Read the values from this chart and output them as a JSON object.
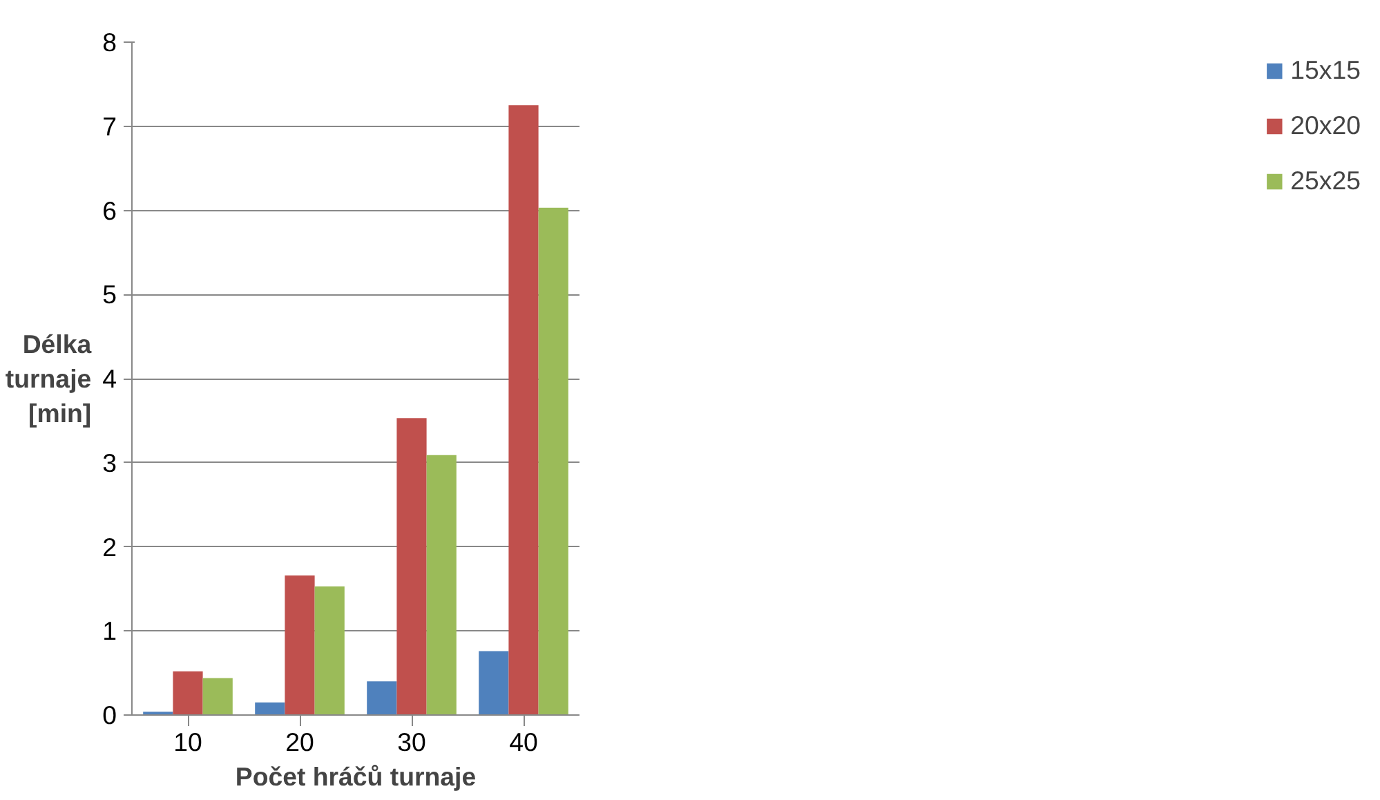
{
  "chart_data": {
    "type": "bar",
    "xlabel": "Počet hráčů turnaje",
    "ylabel": "Délka\nturnaje\n[min]",
    "categories": [
      "10",
      "20",
      "30",
      "40"
    ],
    "series": [
      {
        "name": "15x15",
        "color": "#4f81bd",
        "values": [
          0.04,
          0.15,
          0.4,
          0.76
        ]
      },
      {
        "name": "20x20",
        "color": "#c0504d",
        "values": [
          0.52,
          1.66,
          3.53,
          7.25
        ]
      },
      {
        "name": "25x25",
        "color": "#9bbb59",
        "values": [
          0.44,
          1.53,
          3.09,
          6.03
        ]
      }
    ],
    "ylim": [
      0,
      8
    ],
    "yticks": [
      0,
      1,
      2,
      3,
      4,
      5,
      6,
      7,
      8
    ],
    "grid": "y",
    "legend": "right"
  }
}
